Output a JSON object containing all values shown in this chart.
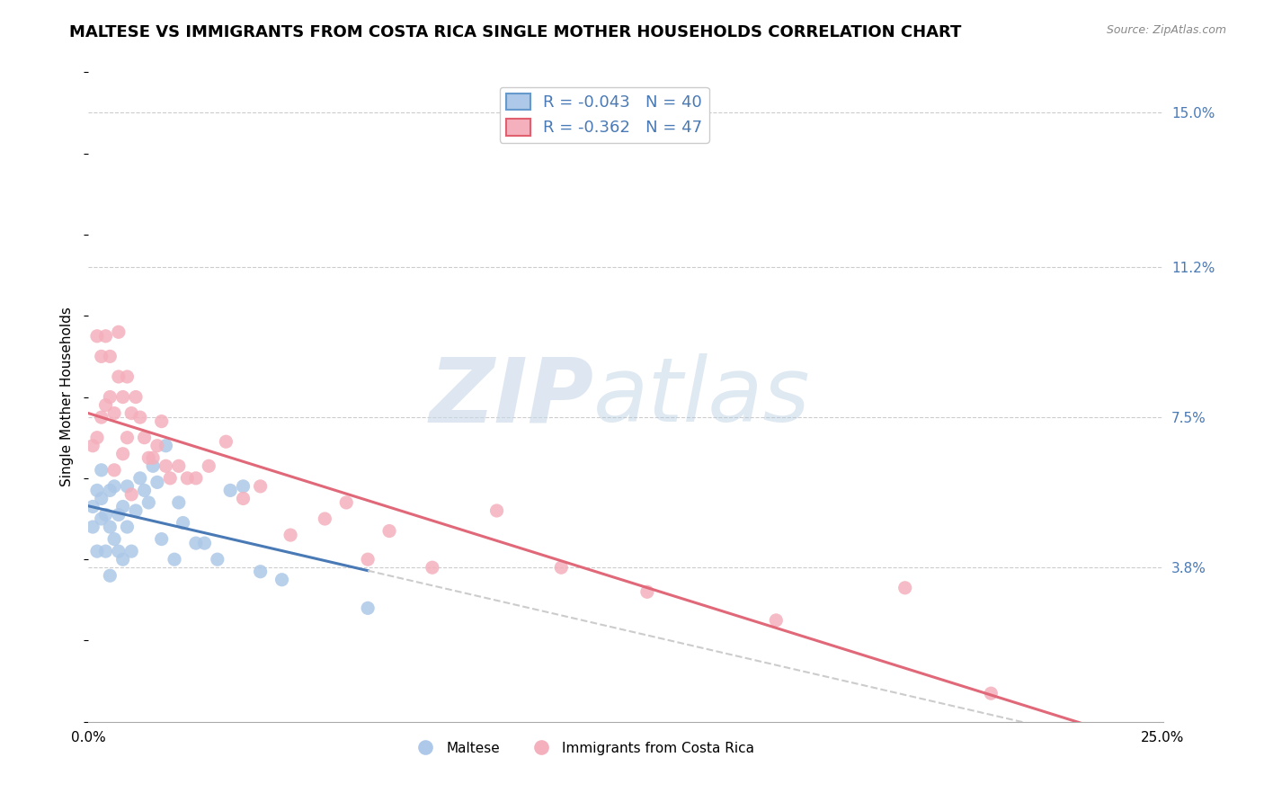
{
  "title": "MALTESE VS IMMIGRANTS FROM COSTA RICA SINGLE MOTHER HOUSEHOLDS CORRELATION CHART",
  "source": "Source: ZipAtlas.com",
  "ylabel": "Single Mother Households",
  "xlim": [
    0.0,
    0.25
  ],
  "ylim": [
    0.0,
    0.16
  ],
  "yticks": [
    0.038,
    0.075,
    0.112,
    0.15
  ],
  "ytick_labels": [
    "3.8%",
    "7.5%",
    "11.2%",
    "15.0%"
  ],
  "xticks": [
    0.0,
    0.05,
    0.1,
    0.15,
    0.2,
    0.25
  ],
  "xtick_labels": [
    "0.0%",
    "",
    "",
    "",
    "",
    "25.0%"
  ],
  "maltese": {
    "name": "Maltese",
    "R": -0.043,
    "N": 40,
    "color": "#adc8e8",
    "edge_color": "#6699cc",
    "x": [
      0.001,
      0.001,
      0.002,
      0.002,
      0.003,
      0.003,
      0.003,
      0.004,
      0.004,
      0.005,
      0.005,
      0.005,
      0.006,
      0.006,
      0.007,
      0.007,
      0.008,
      0.008,
      0.009,
      0.009,
      0.01,
      0.011,
      0.012,
      0.013,
      0.014,
      0.015,
      0.016,
      0.017,
      0.018,
      0.02,
      0.021,
      0.022,
      0.025,
      0.027,
      0.03,
      0.033,
      0.036,
      0.04,
      0.045,
      0.065
    ],
    "y": [
      0.048,
      0.053,
      0.042,
      0.057,
      0.05,
      0.055,
      0.062,
      0.042,
      0.051,
      0.036,
      0.048,
      0.057,
      0.045,
      0.058,
      0.042,
      0.051,
      0.04,
      0.053,
      0.048,
      0.058,
      0.042,
      0.052,
      0.06,
      0.057,
      0.054,
      0.063,
      0.059,
      0.045,
      0.068,
      0.04,
      0.054,
      0.049,
      0.044,
      0.044,
      0.04,
      0.057,
      0.058,
      0.037,
      0.035,
      0.028
    ]
  },
  "costarica": {
    "name": "Immigrants from Costa Rica",
    "R": -0.362,
    "N": 47,
    "color": "#f4b0bc",
    "edge_color": "#e06070",
    "x": [
      0.001,
      0.002,
      0.002,
      0.003,
      0.003,
      0.004,
      0.004,
      0.005,
      0.005,
      0.006,
      0.006,
      0.007,
      0.007,
      0.008,
      0.008,
      0.009,
      0.009,
      0.01,
      0.01,
      0.011,
      0.012,
      0.013,
      0.014,
      0.015,
      0.016,
      0.017,
      0.018,
      0.019,
      0.021,
      0.023,
      0.025,
      0.028,
      0.032,
      0.036,
      0.04,
      0.047,
      0.055,
      0.06,
      0.065,
      0.07,
      0.08,
      0.095,
      0.11,
      0.13,
      0.16,
      0.19,
      0.21
    ],
    "y": [
      0.068,
      0.07,
      0.095,
      0.075,
      0.09,
      0.078,
      0.095,
      0.08,
      0.09,
      0.062,
      0.076,
      0.085,
      0.096,
      0.066,
      0.08,
      0.07,
      0.085,
      0.056,
      0.076,
      0.08,
      0.075,
      0.07,
      0.065,
      0.065,
      0.068,
      0.074,
      0.063,
      0.06,
      0.063,
      0.06,
      0.06,
      0.063,
      0.069,
      0.055,
      0.058,
      0.046,
      0.05,
      0.054,
      0.04,
      0.047,
      0.038,
      0.052,
      0.038,
      0.032,
      0.025,
      0.033,
      0.007
    ]
  },
  "watermark_zip": "ZIP",
  "watermark_atlas": "atlas",
  "background_color": "#ffffff",
  "grid_color": "#cccccc",
  "axis_color": "#4a7ab5",
  "title_fontsize": 13,
  "label_fontsize": 11,
  "tick_fontsize": 11,
  "legend_fontsize": 13
}
